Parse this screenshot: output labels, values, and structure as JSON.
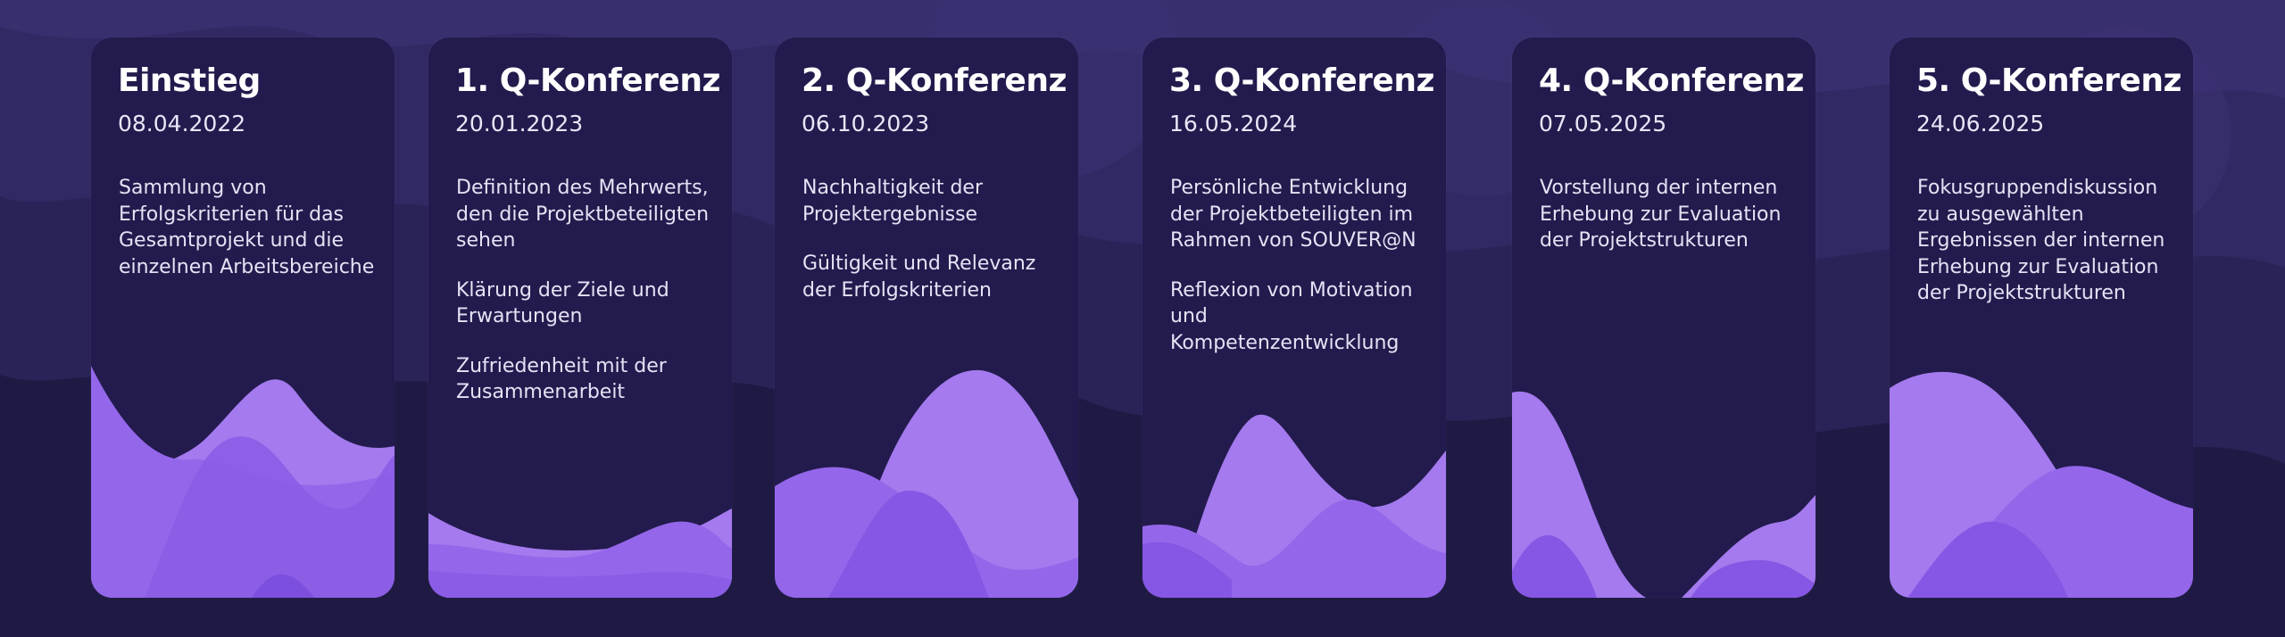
{
  "colors": {
    "background": "#1f1a44",
    "card": "#231b4d",
    "wave_light": "#a47aee",
    "wave_mid": "#9467ea",
    "wave_dark": "#8656e4",
    "title": "#ffffff",
    "text": "#e6e2f5"
  },
  "cards": [
    {
      "title": "Einstieg",
      "date": "08.04.2022",
      "paragraphs": [
        "Sammlung von Erfolgskriterien für das Gesamtprojekt und die einzelnen Arbeitsbereiche"
      ]
    },
    {
      "title": "1. Q-Konferenz",
      "date": "20.01.2023",
      "paragraphs": [
        "Definition des Mehrwerts, den die Projektbeteiligten sehen",
        "Klärung der Ziele und Erwartungen",
        "Zufriedenheit mit der Zusammenarbeit"
      ]
    },
    {
      "title": "2. Q-Konferenz",
      "date": "06.10.2023",
      "paragraphs": [
        "Nachhaltigkeit der Projektergebnisse",
        "Gültigkeit und Relevanz der Erfolgskriterien"
      ]
    },
    {
      "title": "3. Q-Konferenz",
      "date": "16.05.2024",
      "paragraphs": [
        "Persönliche Entwicklung der Projektbeteiligten im Rahmen von SOUVER@N",
        "Reflexion von Motivation und Kompetenzentwicklung"
      ]
    },
    {
      "title": "4. Q-Konferenz",
      "date": "07.05.2025",
      "paragraphs": [
        "Vorstellung der internen Erhebung zur Evaluation der Projektstrukturen"
      ]
    },
    {
      "title": "5. Q-Konferenz",
      "date": "24.06.2025",
      "paragraphs": [
        "Fokusgruppendiskussion zu ausgewählten Ergebnissen der internen Erhebung zur Evaluation der Projektstrukturen"
      ]
    }
  ]
}
